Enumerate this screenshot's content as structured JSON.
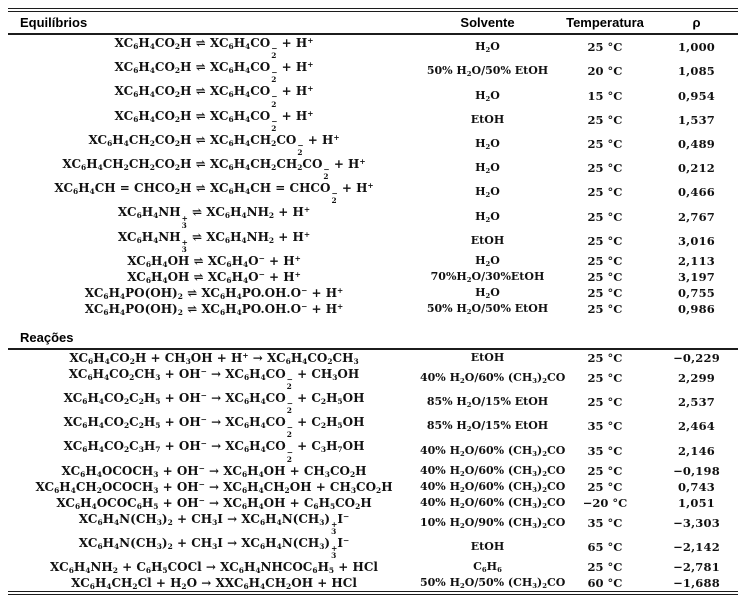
{
  "table": {
    "headers": {
      "equilibria": "Equilíbrios",
      "solvent": "Solvente",
      "temperature": "Temperatura",
      "rho": "ρ"
    },
    "sections": [
      {
        "label": "Equilíbrios",
        "rows": [
          {
            "equation": "XC_6H_4CO_2H ⇌ XC_6H_4CO%{2}{−} + H^+",
            "solvent": "H_2O",
            "temperature": "25 °C",
            "rho": "1,000"
          },
          {
            "equation": "XC_6H_4CO_2H ⇌ XC_6H_4CO%{2}{−} + H^+",
            "solvent": "50% H_2O/50% EtOH",
            "temperature": "20 °C",
            "rho": "1,085"
          },
          {
            "equation": "XC_6H_4CO_2H ⇌ XC_6H_4CO%{2}{−} + H^+",
            "solvent": "H_2O",
            "temperature": "15 °C",
            "rho": "0,954"
          },
          {
            "equation": "XC_6H_4CO_2H ⇌ XC_6H_4CO%{2}{−} + H^+",
            "solvent": "EtOH",
            "temperature": "25 °C",
            "rho": "1,537"
          },
          {
            "equation": "XC_6H_4CH_2CO_2H ⇌ XC_6H_4CH_2CO%{2}{−} + H^+",
            "solvent": "H_2O",
            "temperature": "25 °C",
            "rho": "0,489"
          },
          {
            "equation": "XC_6H_4CH_2CH_2CO_2H ⇌ XC_6H_4CH_2CH_2CO%{2}{−} + H^+",
            "solvent": "H_2O",
            "temperature": "25 °C",
            "rho": "0,212"
          },
          {
            "equation": "XC_6H_4CH = CHCO_2H ⇌ XC_6H_4CH = CHCO%{2}{−} + H^+",
            "solvent": "H_2O",
            "temperature": "25 °C",
            "rho": "0,466"
          },
          {
            "equation": "XC_6H_4NH%{3}{+} ⇌ XC_6H_4NH_2 + H^+",
            "solvent": "H_2O",
            "temperature": "25 °C",
            "rho": "2,767"
          },
          {
            "equation": "XC_6H_4NH%{3}{+} ⇌ XC_6H_4NH_2 + H^+",
            "solvent": "EtOH",
            "temperature": "25 °C",
            "rho": "3,016"
          },
          {
            "equation": "XC_6H_4OH ⇌ XC_6H_4O^− + H^+",
            "solvent": "H_2O",
            "temperature": "25 °C",
            "rho": "2,113"
          },
          {
            "equation": "XC_6H_4OH ⇌ XC_6H_4O^− + H^+",
            "solvent": "70%H_2O/30%EtOH",
            "temperature": "25 °C",
            "rho": "3,197"
          },
          {
            "equation": "XC_6H_4PO(OH)_2 ⇌ XC_6H_4PO.OH.O^− + H^+",
            "solvent": "H_2O",
            "temperature": "25 °C",
            "rho": "0,755"
          },
          {
            "equation": "XC_6H_4PO(OH)_2 ⇌ XC_6H_4PO.OH.O^− + H^+",
            "solvent": "50% H_2O/50% EtOH",
            "temperature": "25 °C",
            "rho": "0,986"
          }
        ]
      },
      {
        "label": "Reações",
        "rows": [
          {
            "equation": "XC_6H_4CO_2H + CH_3OH + H^+ → XC_6H_4CO_2CH_3",
            "solvent": "EtOH",
            "temperature": "25 °C",
            "rho": "−0,229"
          },
          {
            "equation": "XC_6H_4CO_2CH_3 + OH^− → XC_6H_4CO%{2}{−} + CH_3OH",
            "solvent": "40% H_2O/60% (CH_3)_2CO",
            "temperature": "25 °C",
            "rho": "2,299"
          },
          {
            "equation": "XC_6H_4CO_2C_2H_5 + OH^− → XC_6H_4CO%{2}{−} + C_2H_5OH",
            "solvent": "85% H_2O/15% EtOH",
            "temperature": "25 °C",
            "rho": "2,537"
          },
          {
            "equation": "XC_6H_4CO_2C_2H_5 + OH^− → XC_6H_4CO%{2}{−} + C_2H_5OH",
            "solvent": "85% H_2O/15% EtOH",
            "temperature": "35 °C",
            "rho": "2,464"
          },
          {
            "equation": "XC_6H_4CO_2C_3H_7 + OH^− → XC_6H_4CO%{2}{−} + C_3H_7OH",
            "solvent": "40% H_2O/60% (CH_3)_2CO",
            "temperature": "35 °C",
            "rho": "2,146"
          },
          {
            "equation": "XC_6H_4OCOCH_3 + OH^− → XC_6H_4OH + CH_3CO_2H",
            "solvent": "40% H_2O/60% (CH_3)_2CO",
            "temperature": "25 °C",
            "rho": "−0,198"
          },
          {
            "equation": "XC_6H_4CH_2OCOCH_3 + OH^− → XC_6H_4CH_2OH + CH_3CO_2H",
            "solvent": "40% H_2O/60% (CH_3)_2CO",
            "temperature": "25 °C",
            "rho": "0,743"
          },
          {
            "equation": "XC_6H_4OCOC_6H_5 + OH^− → XC_6H_4OH + C_6H_5CO_2H",
            "solvent": "40% H_2O/60% (CH_3)_2CO",
            "temperature": "−20 °C",
            "rho": "1,051"
          },
          {
            "equation": "XC_6H_4N(CH_3)_2 + CH_3I → XC_6H_4N(CH_3)%{3}{+}I^−",
            "solvent": "10% H_2O/90% (CH_3)_2CO",
            "temperature": "35 °C",
            "rho": "−3,303"
          },
          {
            "equation": "XC_6H_4N(CH_3)_2 + CH_3I → XC_6H_4N(CH_3)%{3}{+}I^−",
            "solvent": "EtOH",
            "temperature": "65 °C",
            "rho": "−2,142"
          },
          {
            "equation": "XC_6H_4NH_2 + C_6H_5COCl → XC_6H_4NHCOC_6H_5 + HCl",
            "solvent": "C_6H_6",
            "temperature": "25 °C",
            "rho": "−2,781"
          },
          {
            "equation": "XC_6H_4CH_2Cl + H_2O → XXC_6H_4CH_2OH + HCl",
            "solvent": "50% H_2O/50% (CH_3)_2CO",
            "temperature": "60 °C",
            "rho": "−1,688"
          }
        ]
      }
    ]
  }
}
